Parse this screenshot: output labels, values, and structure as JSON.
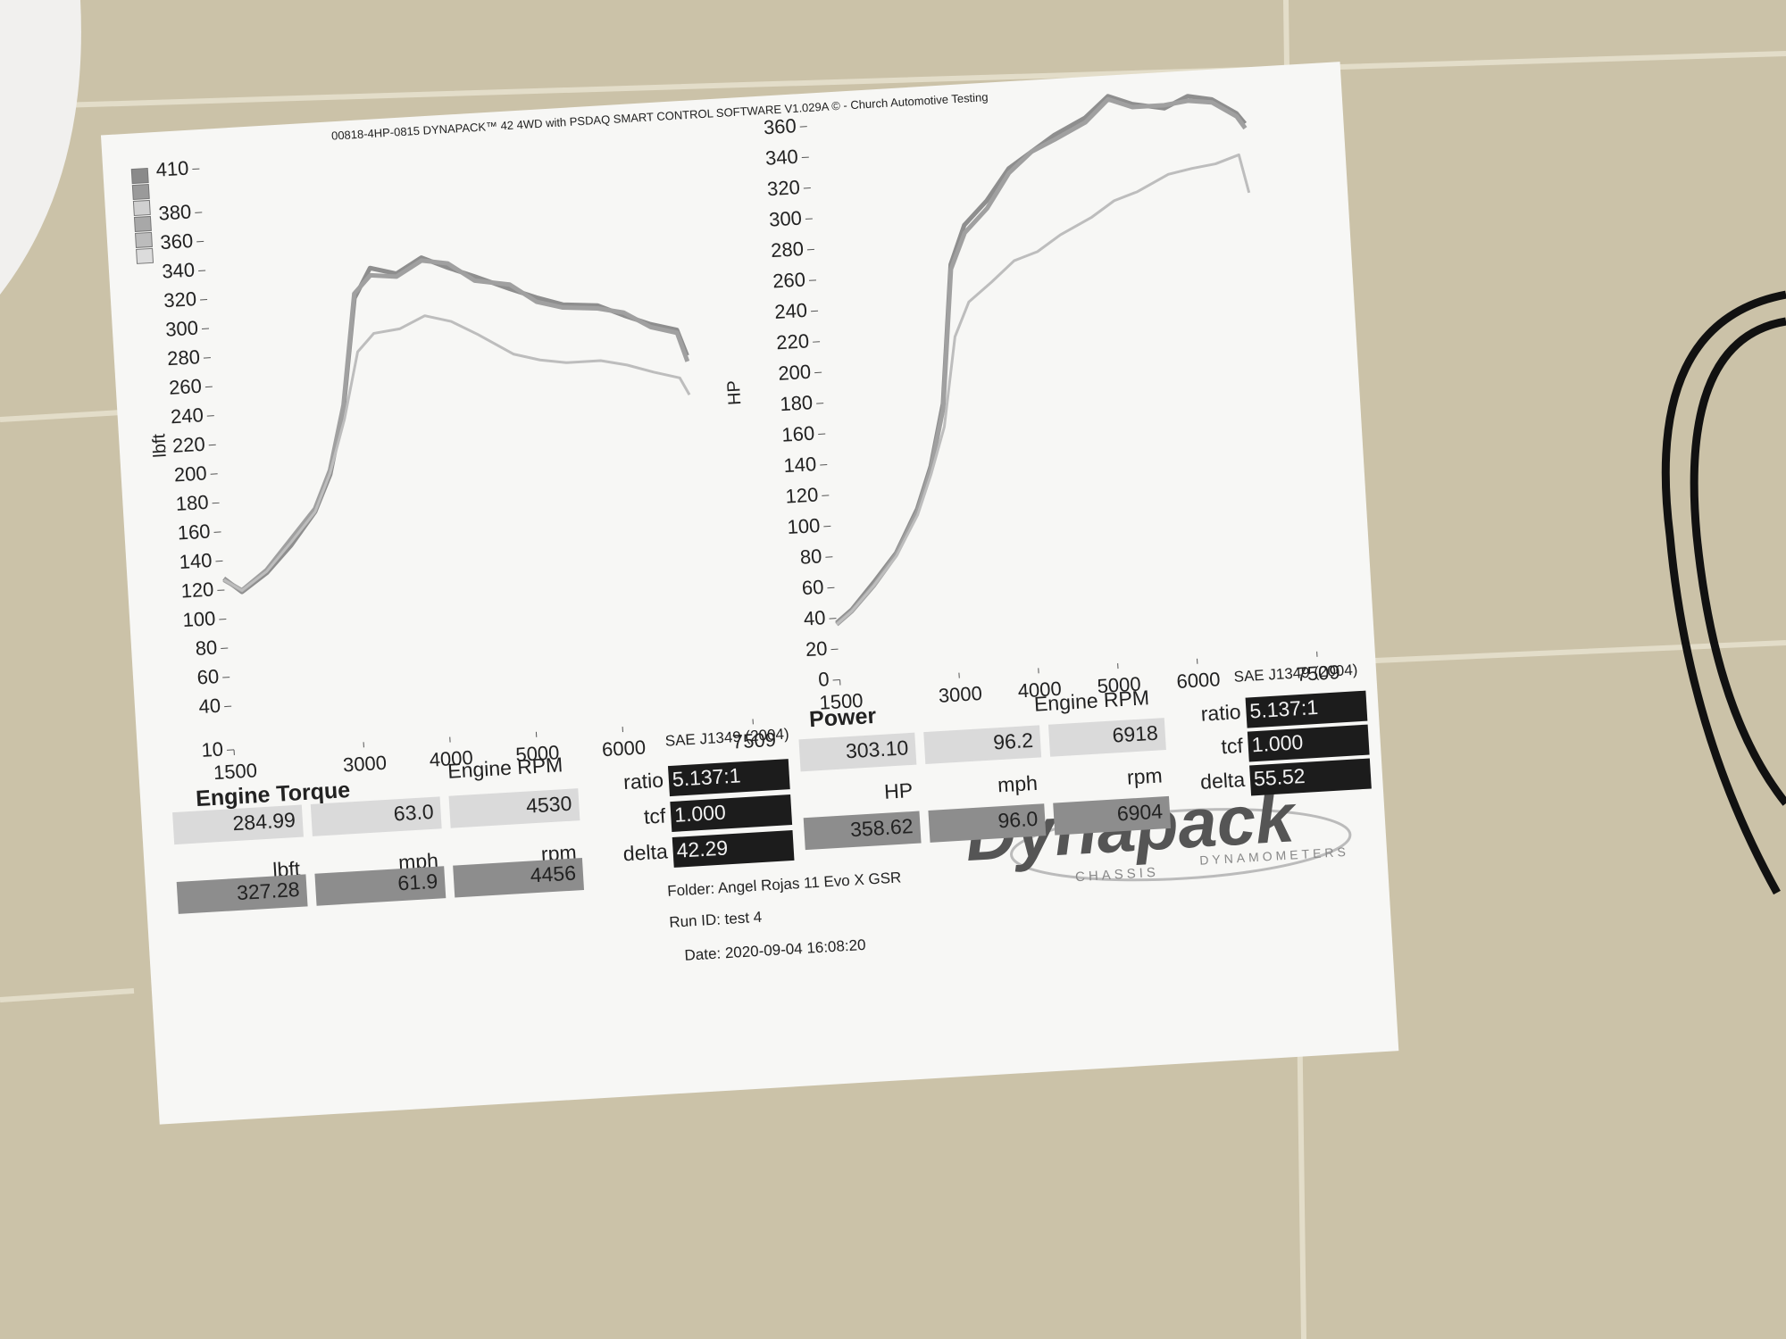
{
  "header": "00818-4HP-0815 DYNAPACK™ 42 4WD with PSDAQ SMART CONTROL SOFTWARE V1.029A © - Church Automotive Testing",
  "chart_data": [
    {
      "type": "line",
      "title": "Engine Torque",
      "x_label": "Engine RPM",
      "y_label": "lbft",
      "x": [
        1500,
        1700,
        2000,
        2300,
        2600,
        2800,
        3000,
        3200,
        3400,
        3700,
        4000,
        4300,
        4600,
        5000,
        5300,
        5600,
        6000,
        6300,
        6600,
        6900,
        7000
      ],
      "xlim": [
        1500,
        7509
      ],
      "xticks": [
        1500,
        3000,
        4000,
        5000,
        6000,
        7509
      ],
      "ylim": [
        10,
        410
      ],
      "yticks": [
        10,
        40,
        60,
        80,
        100,
        120,
        140,
        160,
        180,
        200,
        220,
        240,
        260,
        280,
        300,
        320,
        340,
        360,
        380,
        410
      ],
      "series": [
        {
          "color": "#8e8e8e",
          "values": [
            128,
            118,
            130,
            148,
            170,
            195,
            240,
            315,
            335,
            330,
            340,
            332,
            325,
            315,
            308,
            302,
            300,
            292,
            285,
            280,
            262
          ]
        },
        {
          "color": "#a0a0a0",
          "values": [
            127,
            119,
            132,
            152,
            172,
            198,
            242,
            318,
            330,
            328,
            338,
            335,
            322,
            318,
            305,
            300,
            298,
            294,
            283,
            278,
            258
          ]
        },
        {
          "color": "#bdbdbd",
          "values": [
            127,
            119,
            131,
            150,
            170,
            196,
            232,
            278,
            290,
            292,
            300,
            295,
            285,
            270,
            265,
            262,
            262,
            258,
            252,
            247,
            235
          ]
        }
      ]
    },
    {
      "type": "line",
      "title": "Power",
      "x_label": "Engine RPM",
      "y_label": "HP",
      "x": [
        1500,
        1700,
        2000,
        2300,
        2600,
        2800,
        3000,
        3200,
        3400,
        3700,
        4000,
        4300,
        4600,
        5000,
        5300,
        5600,
        6000,
        6300,
        6600,
        6900,
        7000
      ],
      "xlim": [
        1500,
        7509
      ],
      "xticks": [
        1500,
        3000,
        4000,
        5000,
        6000,
        7509
      ],
      "ylim": [
        0,
        360
      ],
      "yticks": [
        0,
        20,
        40,
        60,
        80,
        100,
        120,
        140,
        160,
        180,
        200,
        220,
        240,
        260,
        280,
        300,
        320,
        340,
        360
      ],
      "series": [
        {
          "color": "#8e8e8e",
          "values": [
            37,
            45,
            62,
            80,
            108,
            135,
            175,
            265,
            290,
            305,
            325,
            335,
            345,
            355,
            368,
            362,
            358,
            365,
            362,
            352,
            345
          ]
        },
        {
          "color": "#a0a0a0",
          "values": [
            36,
            44,
            60,
            79,
            106,
            133,
            172,
            262,
            285,
            300,
            322,
            335,
            342,
            352,
            366,
            360,
            360,
            362,
            360,
            350,
            342
          ]
        },
        {
          "color": "#bdbdbd",
          "values": [
            36,
            44,
            60,
            78,
            104,
            130,
            160,
            218,
            240,
            252,
            265,
            270,
            280,
            290,
            300,
            305,
            315,
            318,
            320,
            325,
            300
          ]
        }
      ]
    }
  ],
  "panels": [
    {
      "standard": "SAE J1349 (2004)",
      "settings": [
        {
          "label": "ratio",
          "value": "5.137:1"
        },
        {
          "label": "tcf",
          "value": "1.000"
        },
        {
          "label": "delta",
          "value": "42.29"
        }
      ],
      "units": [
        "lbft",
        "mph",
        "rpm"
      ],
      "rows": [
        [
          "284.99",
          "63.0",
          "4530"
        ],
        [
          "327.28",
          "61.9",
          "4456"
        ]
      ]
    },
    {
      "standard": "SAE J1349 (2004)",
      "settings": [
        {
          "label": "ratio",
          "value": "5.137:1"
        },
        {
          "label": "tcf",
          "value": "1.000"
        },
        {
          "label": "delta",
          "value": "55.52"
        }
      ],
      "units": [
        "HP",
        "mph",
        "rpm"
      ],
      "rows": [
        [
          "303.10",
          "96.2",
          "6918"
        ],
        [
          "358.62",
          "96.0",
          "6904"
        ]
      ]
    }
  ],
  "run_info": {
    "folder": "Folder:  Angel Rojas 11 Evo X GSR",
    "run_id": "Run ID:  test 4",
    "date": "Date:  2020-09-04 16:08:20"
  },
  "logo": {
    "name": "Dynapack",
    "left": "CHASSIS",
    "right": "DYNAMOMETERS"
  }
}
